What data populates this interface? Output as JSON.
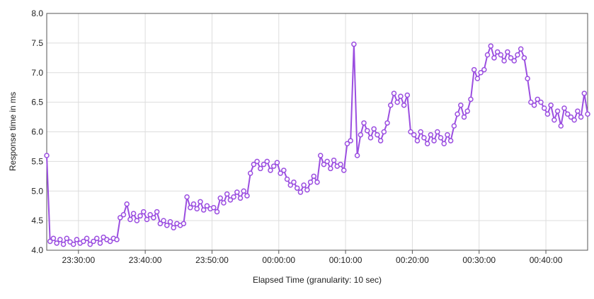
{
  "chart_data": {
    "type": "line",
    "y_label": "Response time in ms",
    "x_label": "Elapsed Time (granularity: 10 sec)",
    "color": "#9b4ee0",
    "grid": true,
    "xlim": [
      "23:25:15",
      "00:46:15"
    ],
    "xticks": [
      "23:30:00",
      "23:40:00",
      "23:50:00",
      "00:00:00",
      "00:10:00",
      "00:20:00",
      "00:30:00",
      "00:40:00"
    ],
    "ylim": [
      4,
      8
    ],
    "yticks": [
      {
        "value": 4,
        "label": "4.0"
      },
      4.5,
      {
        "value": 5,
        "label": "5.0"
      },
      5.5,
      {
        "value": 6,
        "label": "6.0"
      },
      6.5,
      {
        "value": 7,
        "label": "7.0"
      },
      7.5,
      {
        "value": 8,
        "label": "8.0"
      }
    ],
    "x": [
      "23:25:15",
      "23:25:45",
      "23:26:15",
      "23:26:45",
      "23:27:15",
      "23:27:45",
      "23:28:15",
      "23:28:45",
      "23:29:15",
      "23:29:45",
      "23:30:15",
      "23:30:45",
      "23:31:15",
      "23:31:45",
      "23:32:15",
      "23:32:45",
      "23:33:15",
      "23:33:45",
      "23:34:15",
      "23:34:45",
      "23:35:15",
      "23:35:45",
      "23:36:15",
      "23:36:45",
      "23:37:15",
      "23:37:45",
      "23:38:15",
      "23:38:45",
      "23:39:15",
      "23:39:45",
      "23:40:15",
      "23:40:45",
      "23:41:15",
      "23:41:45",
      "23:42:15",
      "23:42:45",
      "23:43:15",
      "23:43:45",
      "23:44:15",
      "23:44:45",
      "23:45:15",
      "23:45:45",
      "23:46:15",
      "23:46:45",
      "23:47:15",
      "23:47:45",
      "23:48:15",
      "23:48:45",
      "23:49:15",
      "23:49:45",
      "23:50:15",
      "23:50:45",
      "23:51:15",
      "23:51:45",
      "23:52:15",
      "23:52:45",
      "23:53:15",
      "23:53:45",
      "23:54:15",
      "23:54:45",
      "23:55:15",
      "23:55:45",
      "23:56:15",
      "23:56:45",
      "23:57:15",
      "23:57:45",
      "23:58:15",
      "23:58:45",
      "23:59:15",
      "23:59:45",
      "00:00:15",
      "00:00:45",
      "00:01:15",
      "00:01:45",
      "00:02:15",
      "00:02:45",
      "00:03:15",
      "00:03:45",
      "00:04:15",
      "00:04:45",
      "00:05:15",
      "00:05:45",
      "00:06:15",
      "00:06:45",
      "00:07:15",
      "00:07:45",
      "00:08:15",
      "00:08:45",
      "00:09:15",
      "00:09:45",
      "00:10:15",
      "00:10:45",
      "00:11:15",
      "00:11:45",
      "00:12:15",
      "00:12:45",
      "00:13:15",
      "00:13:45",
      "00:14:15",
      "00:14:45",
      "00:15:15",
      "00:15:45",
      "00:16:15",
      "00:16:45",
      "00:17:15",
      "00:17:45",
      "00:18:15",
      "00:18:45",
      "00:19:15",
      "00:19:45",
      "00:20:15",
      "00:20:45",
      "00:21:15",
      "00:21:45",
      "00:22:15",
      "00:22:45",
      "00:23:15",
      "00:23:45",
      "00:24:15",
      "00:24:45",
      "00:25:15",
      "00:25:45",
      "00:26:15",
      "00:26:45",
      "00:27:15",
      "00:27:45",
      "00:28:15",
      "00:28:45",
      "00:29:15",
      "00:29:45",
      "00:30:15",
      "00:30:45",
      "00:31:15",
      "00:31:45",
      "00:32:15",
      "00:32:45",
      "00:33:15",
      "00:33:45",
      "00:34:15",
      "00:34:45",
      "00:35:15",
      "00:35:45",
      "00:36:15",
      "00:36:45",
      "00:37:15",
      "00:37:45",
      "00:38:15",
      "00:38:45",
      "00:39:15",
      "00:39:45",
      "00:40:15",
      "00:40:45",
      "00:41:15",
      "00:41:45",
      "00:42:15",
      "00:42:45",
      "00:43:15",
      "00:43:45",
      "00:44:15",
      "00:44:45",
      "00:45:15",
      "00:45:45",
      "00:46:15"
    ],
    "values": [
      5.6,
      4.15,
      4.2,
      4.12,
      4.18,
      4.1,
      4.2,
      4.14,
      4.1,
      4.18,
      4.12,
      4.15,
      4.2,
      4.1,
      4.15,
      4.2,
      4.12,
      4.22,
      4.18,
      4.15,
      4.2,
      4.18,
      4.55,
      4.6,
      4.78,
      4.52,
      4.62,
      4.5,
      4.58,
      4.65,
      4.52,
      4.6,
      4.55,
      4.65,
      4.45,
      4.5,
      4.42,
      4.48,
      4.38,
      4.45,
      4.42,
      4.45,
      4.9,
      4.72,
      4.78,
      4.7,
      4.82,
      4.68,
      4.75,
      4.7,
      4.72,
      4.65,
      4.88,
      4.8,
      4.95,
      4.85,
      4.9,
      4.98,
      4.88,
      5.0,
      4.92,
      5.3,
      5.45,
      5.5,
      5.38,
      5.45,
      5.5,
      5.35,
      5.42,
      5.48,
      5.3,
      5.35,
      5.2,
      5.1,
      5.15,
      5.05,
      4.98,
      5.1,
      5.02,
      5.15,
      5.25,
      5.15,
      5.6,
      5.45,
      5.5,
      5.38,
      5.52,
      5.42,
      5.45,
      5.35,
      5.8,
      5.85,
      7.48,
      5.6,
      5.95,
      6.15,
      6.02,
      5.9,
      6.05,
      5.95,
      5.85,
      6.0,
      6.15,
      6.45,
      6.65,
      6.5,
      6.6,
      6.45,
      6.62,
      6.0,
      5.95,
      5.85,
      6.0,
      5.9,
      5.8,
      5.95,
      5.85,
      6.0,
      5.9,
      5.8,
      5.95,
      5.85,
      6.1,
      6.3,
      6.45,
      6.25,
      6.35,
      6.55,
      7.05,
      6.9,
      7.0,
      7.05,
      7.3,
      7.45,
      7.25,
      7.35,
      7.3,
      7.2,
      7.35,
      7.25,
      7.2,
      7.3,
      7.4,
      7.25,
      6.9,
      6.5,
      6.45,
      6.55,
      6.5,
      6.4,
      6.3,
      6.45,
      6.2,
      6.35,
      6.1,
      6.4,
      6.3,
      6.25,
      6.2,
      6.35,
      6.25,
      6.65,
      6.3
    ]
  }
}
